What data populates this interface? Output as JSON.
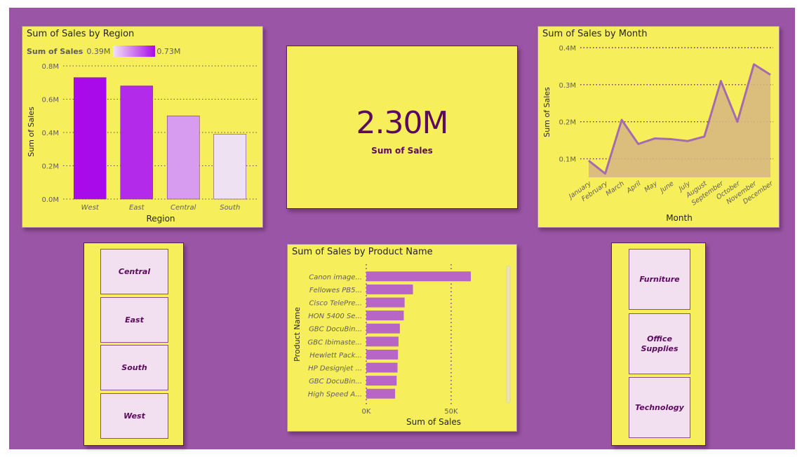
{
  "colors": {
    "canvas": "#9b55a6",
    "card": "#f7ee5b",
    "accent": "#5c0a5f",
    "line": "#a46bb0",
    "area": "#d7b77f",
    "bar": "#b866c6",
    "tile": "#f2dff0"
  },
  "region_chart": {
    "title": "Sum of Sales by Region",
    "legend_title": "Sum of Sales",
    "legend_min": "0.39M",
    "legend_max": "0.73M",
    "xlabel": "Region",
    "ylabel": "Sum of Sales",
    "y_ticks": [
      "0.8M",
      "0.6M",
      "0.4M",
      "0.2M",
      "0.0M"
    ]
  },
  "kpi": {
    "value": "2.30M",
    "label": "Sum of Sales"
  },
  "month_chart": {
    "title": "Sum of Sales by Month",
    "xlabel": "Month",
    "ylabel": "Sum of Sales",
    "y_ticks": [
      "0.4M",
      "0.3M",
      "0.2M",
      "0.1M"
    ]
  },
  "product_chart": {
    "title": "Sum of Sales by Product Name",
    "xlabel": "Sum of Sales",
    "ylabel": "Product Name",
    "x_ticks": [
      "0K",
      "50K"
    ]
  },
  "region_slicer": {
    "items": [
      "Central",
      "East",
      "South",
      "West"
    ]
  },
  "category_slicer": {
    "items": [
      "Furniture",
      "Office\nSupplies",
      "Technology"
    ]
  },
  "chart_data": [
    {
      "type": "bar",
      "title": "Sum of Sales by Region",
      "categories": [
        "West",
        "East",
        "Central",
        "South"
      ],
      "values": [
        0.73,
        0.68,
        0.5,
        0.39
      ],
      "unit": "M",
      "xlabel": "Region",
      "ylabel": "Sum of Sales",
      "ylim": [
        0,
        0.8
      ],
      "color_scale": {
        "min": 0.39,
        "max": 0.73,
        "min_color": "#ede1f2",
        "max_color": "#a90ae9"
      },
      "grid": true
    },
    {
      "type": "area",
      "title": "Sum of Sales by Month",
      "categories": [
        "January",
        "February",
        "March",
        "April",
        "May",
        "June",
        "July",
        "August",
        "September",
        "October",
        "November",
        "December"
      ],
      "values": [
        0.095,
        0.06,
        0.205,
        0.14,
        0.155,
        0.153,
        0.148,
        0.16,
        0.31,
        0.2,
        0.355,
        0.327
      ],
      "unit": "M",
      "xlabel": "Month",
      "ylabel": "Sum of Sales",
      "ylim": [
        0.05,
        0.4
      ],
      "grid": true
    },
    {
      "type": "bar",
      "orientation": "horizontal",
      "title": "Sum of Sales by Product Name",
      "categories": [
        "Canon image...",
        "Fellowes PB5...",
        "Cisco TelePre...",
        "HON 5400 Se...",
        "GBC DocuBin...",
        "GBC Ibimaste...",
        "Hewlett Pack...",
        "HP Designjet ...",
        "GBC DocuBin...",
        "High Speed A..."
      ],
      "values": [
        61600,
        27500,
        22600,
        22100,
        19800,
        19000,
        18700,
        18400,
        17900,
        17000
      ],
      "xlabel": "Sum of Sales",
      "ylabel": "Product Name",
      "xlim": [
        0,
        62000
      ],
      "grid": true
    }
  ]
}
